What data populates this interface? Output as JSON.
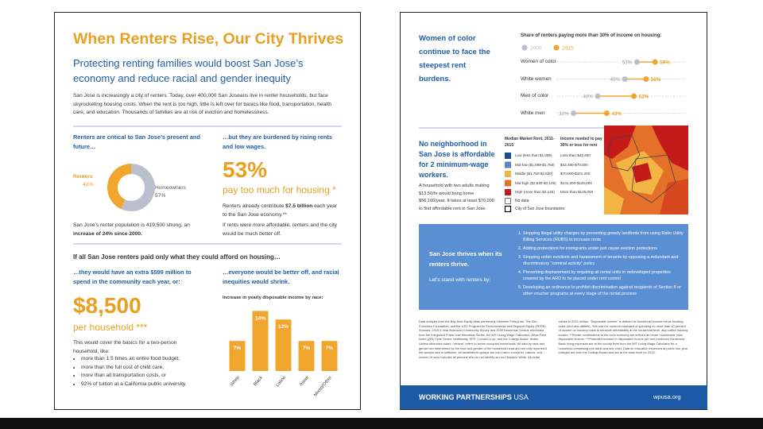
{
  "left": {
    "title": "When Renters Rise, Our City Thrives",
    "subtitle": "Protecting renting families would boost San Jose’s economy and reduce racial and gender inequity",
    "intro": "San Jose is increasingly a city of renters. Today, over 400,000 San Joseans live in renter households, but face skyrocketing housing costs. When the rent is too high, little is left over for basics like food, transportation, health care, and education. Thousands of families are at risk of eviction and homelessness.",
    "critical": {
      "heading": "Renters are critical to San Jose’s present and future…",
      "donut": [
        {
          "name": "Renters",
          "value": 43,
          "label": "43%",
          "color": "#f0a52c"
        },
        {
          "name": "Homeowners",
          "value": 57,
          "label": "57%",
          "color": "#b9bfcc"
        }
      ],
      "note_start": "San Jose’s renter population is 419,500 strong, an ",
      "note_bold": "increase of 24% since 2000."
    },
    "burdened": {
      "heading": "…but they are burdened by rising rents and low wages.",
      "stat": "53%",
      "stat_caption": "pay too much for housing *",
      "text1_start": "Renters already contribute ",
      "text1_bold": "$7.5 billion",
      "text1_end": " each year to the San Jose economy.**",
      "text2": "If rents were more affordable, renters and the city would be much better off."
    },
    "afford_heading": "If all San Jose renters paid only what they could afford on housing…",
    "extra": {
      "heading": "…they would have an extra $599 million to spend in the community each year, or:",
      "stat": "$8,500",
      "stat_caption": "per household ***",
      "text": "This would cover the basics for a two-person household, like:",
      "bullets": [
        "more than 1.5 times an entire food budget,",
        "more than the full cost of child care,",
        "more than all transportation costs, or",
        "92% of tuition at a California public university."
      ]
    },
    "better": {
      "heading": "…everyone would be better off, and racial inequities would shrink.",
      "chart_title": "Increase in yearly disposable income by race:",
      "color": "#f0a52c",
      "categories": [
        "White",
        "Black",
        "Latino",
        "Asian",
        "Mixed/Other"
      ],
      "values": [
        7,
        14,
        12,
        7,
        7
      ],
      "value_labels": [
        "7%",
        "14%",
        "12%",
        "7%",
        "7%"
      ]
    }
  },
  "right": {
    "gender": {
      "heading": "Women of color continue to face the steepest rent burdens.",
      "chart_title": "Share of renters paying more than 30% of income on housing:",
      "legend": [
        {
          "name": "2000",
          "color": "#b9bfcc"
        },
        {
          "name": "2015",
          "color": "#f0a52c"
        }
      ],
      "rows": [
        {
          "label": "Women of color",
          "v2000": 53,
          "label2000": "53%",
          "v2015": 59,
          "label2015": "59%"
        },
        {
          "label": "White women",
          "v2000": 49,
          "label2000": "49%",
          "v2015": 56,
          "label2015": "56%"
        },
        {
          "label": "Men of color",
          "v2000": 40,
          "label2000": "40%",
          "v2015": 52,
          "label2015": "52%"
        },
        {
          "label": "White men",
          "v2000": 32,
          "label2000": "32%",
          "v2015": 43,
          "label2015": "43%"
        }
      ]
    },
    "map": {
      "heading": "No neighborhood in San Jose is affordable for 2 minimum-wage workers.",
      "text": "A household with two adults making $13.50/hr would bring home $56,160/year. It takes at least $70,000 to find affordable rent in San Jose.",
      "col1": "Median Market Rent, 2011-2015",
      "col2": "Income needed to pay 30% or less for rent",
      "rows": [
        {
          "rent": "Low (less than $1,089)",
          "income": "Less than $43,490",
          "color": "#1a4f8c"
        },
        {
          "rent": "Mid-low ($1,089-$1,750)",
          "income": "$43,490-$70,000",
          "color": "#5a86c0"
        },
        {
          "rent": "Middle ($1,750-$2,530)",
          "income": "$70,000-$101,200",
          "color": "#f2b544"
        },
        {
          "rent": "Mid-high ($2,530-$3,125)",
          "income": "$101,200-$125,000",
          "color": "#e4702a"
        },
        {
          "rent": "High (more than $3,125)",
          "income": "More than $125,000",
          "color": "#c41a1a"
        }
      ],
      "no_data": "No data",
      "boundaries": "City of San Jose boundaries"
    },
    "thrives": {
      "title": "San Jose thrives when its renters thrive.",
      "subtitle": "Let’s stand with renters by:",
      "items": [
        "Stopping illegal utility charges by preventing greedy landlords from using Ratio Utility Billing Services (RUBS) to increase rents",
        "Adding protections for immigrants under just cause eviction protections",
        "Stopping unfair evictions and harassment of tenants by opposing a redundant and discriminatory “criminal activity” policy",
        "Preventing displacement by requiring all rental units in redeveloped properties covered by the ARO to be placed under rent control",
        "Developing an ordinance to prohibit discrimination against recipients of Section 8 or other voucher programs at every stage of the rental process"
      ]
    },
    "footnotes": "Data analysis from the Bay Area Equity Atlas partnership between PolicyLink, The San Francisco Foundation, and the USC Program for Environmental and Regional Equity (PERE). Sources: 2015 5-Year American Community Survey and 2000 Decennial Census microdata from the Integrated Public Use Microdata Series, the MIT Living Wage Calculator, Zillow Rent Index (ZRI) Time Series: Multifamily, SFR, Condo/Co-op, and the College Board. Notes: Unless otherwise noted, “renters” refers to renter-occupied households. All data by race and gender are determined by the race and gender of the household head and are only reported if the sample size is sufficient. All racial/ethnic groups are non-Latino except for Latinos, and women of color includes all persons who do not identify as non-Hispanic White. All dollar values in 2015 dollars. “Disposable income” is defined as household income minus housing costs (rent and utilities). *We use the common standard of spending no more than 30 percent of income on housing costs to measure affordability at the household level, also called housing burden. **Renter contributions to the local economy are defined as renter households’ total disposable income. ***Potential increase in disposable income per rent-burdened household. Basic living expenses are at the county level from the MIT Living Wage Calculator for a household comprising one adult and one child. Data on education expenses at public four year colleges are from the College Board and are at the state level for 2015.",
    "footer_org": "WORKING PARTNERSHIPS",
    "footer_usa": "USA",
    "footer_url": "wpusa.org"
  }
}
